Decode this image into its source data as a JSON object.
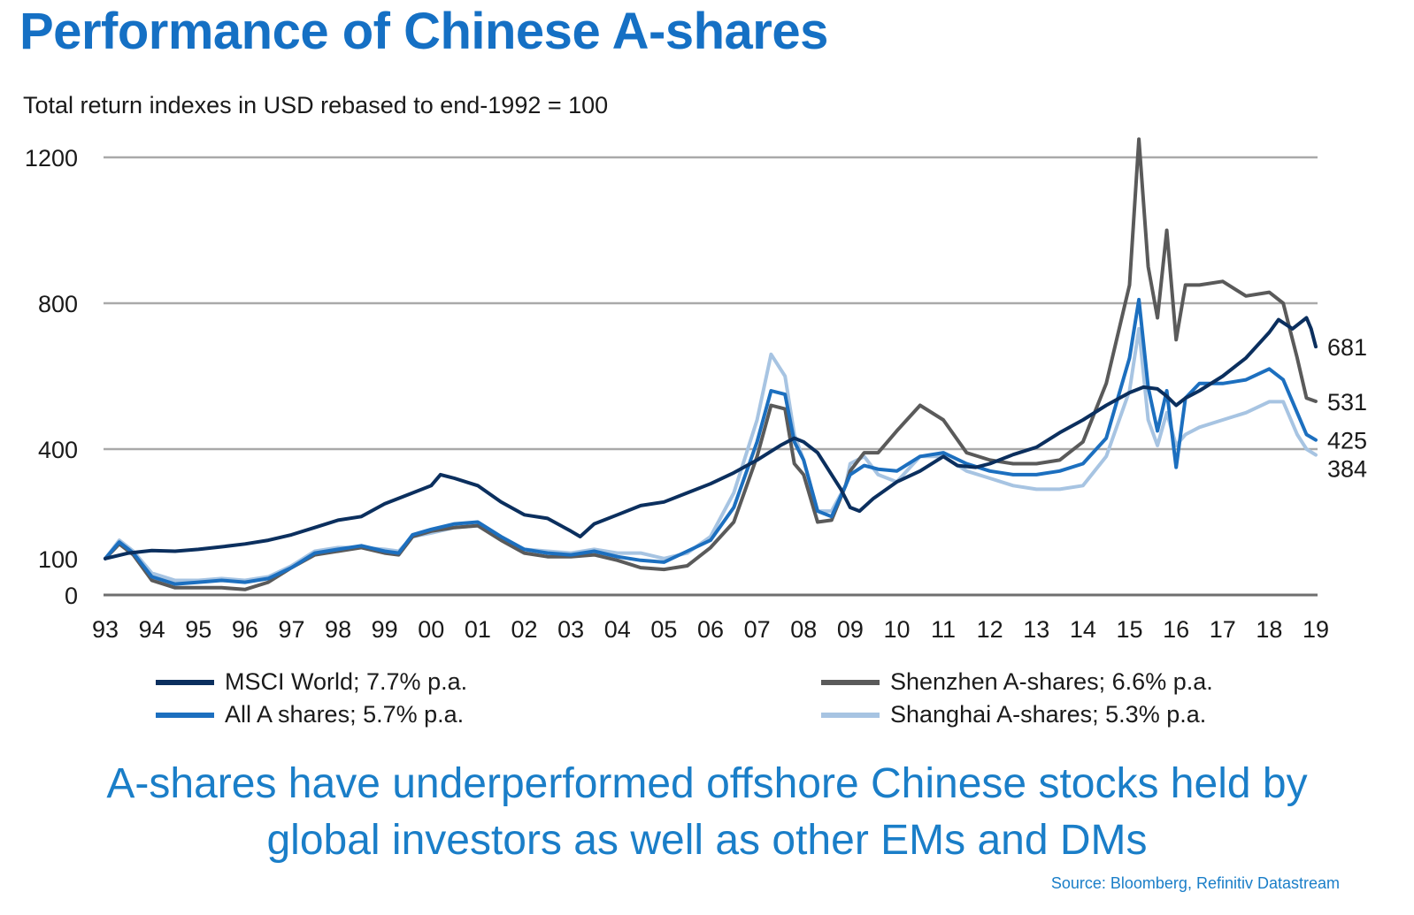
{
  "title": "Performance of Chinese A-shares",
  "subtitle": "Total return indexes  in USD rebased  to end-1992  = 100",
  "caption_line1": "A-shares have underperformed offshore Chinese stocks held by",
  "caption_line2": "global investors as well as other EMs and DMs",
  "source": "Source: Bloomberg, Refinitiv Datastream",
  "chart_data": {
    "type": "line",
    "title": "Performance of Chinese A-shares",
    "ylabel": "Total return indexes  in USD rebased  to end-1992  = 100",
    "xlabel": "",
    "ylim": [
      0,
      1200
    ],
    "y_ticks": [
      0,
      100,
      400,
      800,
      1200
    ],
    "x_range": [
      1993,
      2019
    ],
    "x_tick_labels": [
      "93",
      "94",
      "95",
      "96",
      "97",
      "98",
      "99",
      "00",
      "01",
      "02",
      "03",
      "04",
      "05",
      "06",
      "07",
      "08",
      "09",
      "10",
      "11",
      "12",
      "13",
      "14",
      "15",
      "16",
      "17",
      "18",
      "19"
    ],
    "grid": true,
    "legend_position": "bottom",
    "series": [
      {
        "name": "MSCI World; 7.7% p.a.",
        "color": "#0b2f5e",
        "end_label": "681",
        "x": [
          1993,
          1993.5,
          1994,
          1994.5,
          1995,
          1995.5,
          1996,
          1996.5,
          1997,
          1997.5,
          1998,
          1998.5,
          1999,
          1999.5,
          2000,
          2000.2,
          2000.5,
          2001,
          2001.5,
          2002,
          2002.5,
          2003,
          2003.2,
          2003.5,
          2004,
          2004.5,
          2005,
          2005.5,
          2006,
          2006.5,
          2007,
          2007.5,
          2007.8,
          2008,
          2008.3,
          2008.5,
          2008.8,
          2009,
          2009.2,
          2009.5,
          2010,
          2010.5,
          2011,
          2011.3,
          2011.7,
          2012,
          2012.5,
          2013,
          2013.5,
          2014,
          2014.5,
          2015,
          2015.3,
          2015.6,
          2015.8,
          2016,
          2016.2,
          2016.5,
          2017,
          2017.5,
          2018,
          2018.2,
          2018.5,
          2018.8,
          2018.9,
          2019
        ],
        "values": [
          100,
          115,
          122,
          120,
          125,
          132,
          140,
          150,
          165,
          185,
          205,
          215,
          250,
          275,
          300,
          330,
          320,
          300,
          255,
          220,
          210,
          175,
          160,
          195,
          220,
          245,
          255,
          280,
          305,
          335,
          370,
          410,
          430,
          420,
          390,
          350,
          290,
          240,
          230,
          265,
          310,
          340,
          380,
          355,
          350,
          360,
          385,
          405,
          445,
          480,
          520,
          555,
          570,
          565,
          545,
          520,
          540,
          560,
          600,
          650,
          720,
          755,
          730,
          760,
          730,
          681
        ]
      },
      {
        "name": "All A shares; 5.7% p.a.",
        "color": "#1c6fbf",
        "end_label": "425",
        "x": [
          1993,
          1993.3,
          1993.6,
          1994,
          1994.5,
          1995,
          1995.5,
          1996,
          1996.5,
          1997,
          1997.5,
          1998,
          1998.5,
          1999,
          1999.3,
          1999.6,
          2000,
          2000.5,
          2001,
          2001.5,
          2002,
          2002.5,
          2003,
          2003.5,
          2004,
          2004.5,
          2005,
          2005.5,
          2006,
          2006.5,
          2007,
          2007.3,
          2007.6,
          2007.8,
          2008,
          2008.3,
          2008.6,
          2008.9,
          2009,
          2009.3,
          2009.6,
          2010,
          2010.5,
          2011,
          2011.5,
          2012,
          2012.5,
          2013,
          2013.5,
          2014,
          2014.5,
          2015,
          2015.2,
          2015.4,
          2015.6,
          2015.8,
          2016,
          2016.2,
          2016.5,
          2017,
          2017.5,
          2018,
          2018.3,
          2018.6,
          2018.8,
          2019
        ],
        "values": [
          100,
          145,
          115,
          50,
          30,
          35,
          40,
          35,
          45,
          75,
          115,
          125,
          135,
          120,
          115,
          165,
          180,
          195,
          200,
          160,
          125,
          115,
          110,
          120,
          105,
          95,
          90,
          120,
          150,
          240,
          420,
          560,
          550,
          420,
          370,
          230,
          215,
          300,
          330,
          355,
          345,
          340,
          380,
          390,
          360,
          340,
          330,
          330,
          340,
          360,
          430,
          650,
          810,
          570,
          450,
          560,
          350,
          540,
          580,
          580,
          590,
          620,
          590,
          500,
          440,
          425
        ]
      },
      {
        "name": "Shenzhen A-shares; 6.6% p.a.",
        "color": "#5a5a5a",
        "end_label": "531",
        "x": [
          1993,
          1993.3,
          1993.6,
          1994,
          1994.5,
          1995,
          1995.5,
          1996,
          1996.5,
          1997,
          1997.5,
          1998,
          1998.5,
          1999,
          1999.3,
          1999.6,
          2000,
          2000.5,
          2001,
          2001.5,
          2002,
          2002.5,
          2003,
          2003.5,
          2004,
          2004.5,
          2005,
          2005.5,
          2006,
          2006.5,
          2007,
          2007.3,
          2007.6,
          2007.8,
          2008,
          2008.3,
          2008.6,
          2008.9,
          2009,
          2009.3,
          2009.6,
          2010,
          2010.5,
          2011,
          2011.5,
          2012,
          2012.5,
          2013,
          2013.5,
          2014,
          2014.5,
          2015,
          2015.2,
          2015.4,
          2015.6,
          2015.8,
          2016,
          2016.2,
          2016.5,
          2017,
          2017.5,
          2018,
          2018.3,
          2018.6,
          2018.8,
          2019
        ],
        "values": [
          100,
          140,
          110,
          40,
          20,
          20,
          20,
          15,
          35,
          75,
          110,
          120,
          130,
          115,
          110,
          160,
          175,
          185,
          190,
          150,
          115,
          105,
          105,
          110,
          95,
          75,
          70,
          80,
          130,
          200,
          380,
          520,
          510,
          360,
          330,
          200,
          205,
          300,
          340,
          390,
          390,
          450,
          520,
          480,
          390,
          370,
          360,
          360,
          370,
          420,
          580,
          850,
          1250,
          900,
          760,
          1000,
          700,
          850,
          850,
          860,
          820,
          830,
          800,
          650,
          540,
          531
        ]
      },
      {
        "name": "Shanghai A-shares; 5.3% p.a.",
        "color": "#a7c4e2",
        "end_label": "384",
        "x": [
          1993,
          1993.3,
          1993.6,
          1994,
          1994.5,
          1995,
          1995.5,
          1996,
          1996.5,
          1997,
          1997.5,
          1998,
          1998.5,
          1999,
          1999.3,
          1999.6,
          2000,
          2000.5,
          2001,
          2001.5,
          2002,
          2002.5,
          2003,
          2003.5,
          2004,
          2004.5,
          2005,
          2005.5,
          2006,
          2006.5,
          2007,
          2007.3,
          2007.6,
          2007.8,
          2008,
          2008.3,
          2008.6,
          2008.9,
          2009,
          2009.3,
          2009.6,
          2010,
          2010.5,
          2011,
          2011.5,
          2012,
          2012.5,
          2013,
          2013.5,
          2014,
          2014.5,
          2015,
          2015.2,
          2015.4,
          2015.6,
          2015.8,
          2016,
          2016.2,
          2016.5,
          2017,
          2017.5,
          2018,
          2018.3,
          2018.6,
          2018.8,
          2019
        ],
        "values": [
          100,
          150,
          120,
          60,
          40,
          40,
          45,
          40,
          50,
          80,
          120,
          130,
          130,
          125,
          120,
          160,
          170,
          185,
          190,
          155,
          125,
          120,
          115,
          125,
          115,
          115,
          100,
          115,
          160,
          280,
          480,
          660,
          600,
          440,
          370,
          230,
          230,
          300,
          360,
          380,
          330,
          310,
          380,
          380,
          340,
          320,
          300,
          290,
          290,
          300,
          380,
          560,
          730,
          480,
          410,
          500,
          410,
          440,
          460,
          480,
          500,
          530,
          530,
          440,
          400,
          384
        ]
      }
    ]
  }
}
